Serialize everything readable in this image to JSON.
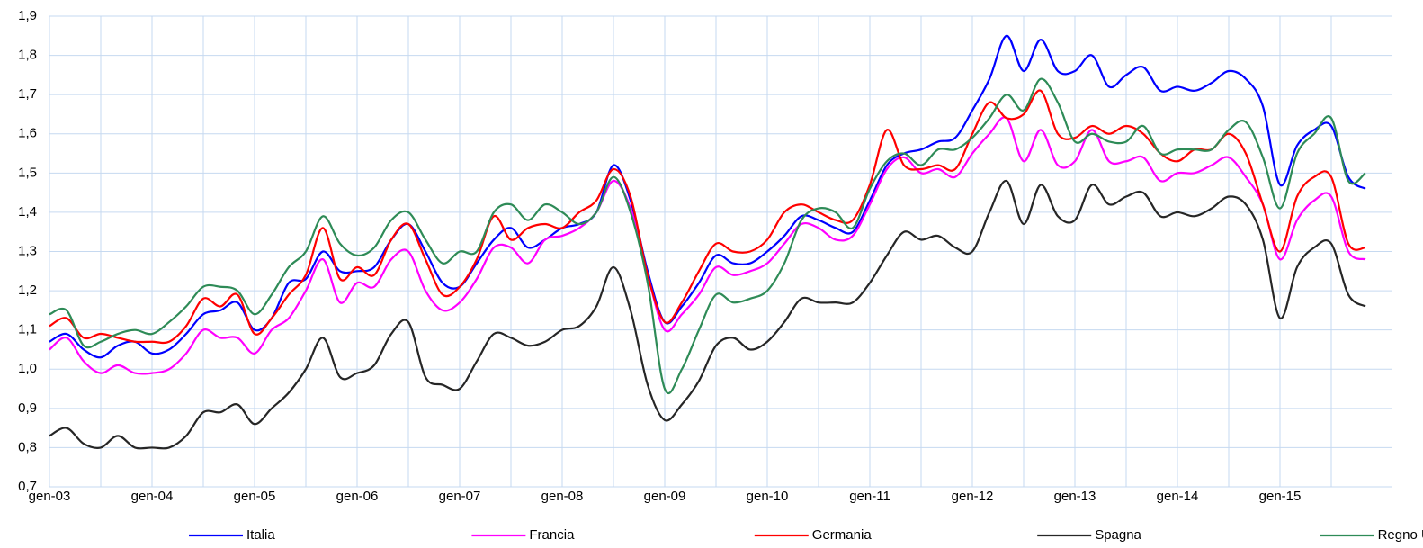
{
  "chart_data": {
    "type": "line",
    "categories": [
      "gen-03",
      null,
      null,
      null,
      null,
      null,
      "gen-04",
      null,
      null,
      null,
      null,
      null,
      "gen-05",
      null,
      null,
      null,
      null,
      null,
      "gen-06",
      null,
      null,
      null,
      null,
      null,
      "gen-07",
      null,
      null,
      null,
      null,
      null,
      "gen-08",
      null,
      null,
      null,
      null,
      null,
      "gen-09",
      null,
      null,
      null,
      null,
      null,
      "gen-10",
      null,
      null,
      null,
      null,
      null,
      "gen-11",
      null,
      null,
      null,
      null,
      null,
      "gen-12",
      null,
      null,
      null,
      null,
      null,
      "gen-13",
      null,
      null,
      null,
      null,
      null,
      "gen-14",
      null,
      null,
      null,
      null,
      null,
      "gen-15",
      null,
      null,
      null,
      null,
      null
    ],
    "series": [
      {
        "name": "Italia",
        "color": "#0000ff",
        "values": [
          1.07,
          1.09,
          1.05,
          1.03,
          1.06,
          1.07,
          1.04,
          1.05,
          1.09,
          1.14,
          1.15,
          1.17,
          1.1,
          1.13,
          1.22,
          1.23,
          1.3,
          1.25,
          1.25,
          1.26,
          1.33,
          1.37,
          1.3,
          1.22,
          1.21,
          1.27,
          1.33,
          1.36,
          1.31,
          1.33,
          1.36,
          1.37,
          1.4,
          1.52,
          1.43,
          1.25,
          1.12,
          1.16,
          1.22,
          1.29,
          1.27,
          1.27,
          1.3,
          1.34,
          1.39,
          1.38,
          1.36,
          1.35,
          1.43,
          1.52,
          1.55,
          1.56,
          1.58,
          1.59,
          1.66,
          1.74,
          1.85,
          1.76,
          1.84,
          1.76,
          1.76,
          1.8,
          1.72,
          1.75,
          1.77,
          1.71,
          1.72,
          1.71,
          1.73,
          1.76,
          1.74,
          1.67,
          1.47,
          1.57,
          1.61,
          1.62,
          1.49,
          1.46
        ]
      },
      {
        "name": "Francia",
        "color": "#ff00ff",
        "values": [
          1.05,
          1.08,
          1.02,
          0.99,
          1.01,
          0.99,
          0.99,
          1.0,
          1.04,
          1.1,
          1.08,
          1.08,
          1.04,
          1.1,
          1.13,
          1.2,
          1.28,
          1.17,
          1.22,
          1.21,
          1.28,
          1.3,
          1.2,
          1.15,
          1.17,
          1.23,
          1.31,
          1.31,
          1.27,
          1.33,
          1.34,
          1.36,
          1.4,
          1.48,
          1.41,
          1.24,
          1.1,
          1.14,
          1.19,
          1.26,
          1.24,
          1.25,
          1.27,
          1.32,
          1.37,
          1.36,
          1.33,
          1.34,
          1.42,
          1.51,
          1.54,
          1.5,
          1.51,
          1.49,
          1.55,
          1.6,
          1.64,
          1.53,
          1.61,
          1.52,
          1.53,
          1.61,
          1.53,
          1.53,
          1.54,
          1.48,
          1.5,
          1.5,
          1.52,
          1.54,
          1.49,
          1.42,
          1.28,
          1.38,
          1.43,
          1.44,
          1.3,
          1.28
        ]
      },
      {
        "name": "Germania",
        "color": "#ff0000",
        "values": [
          1.11,
          1.13,
          1.08,
          1.09,
          1.08,
          1.07,
          1.07,
          1.07,
          1.11,
          1.18,
          1.16,
          1.19,
          1.09,
          1.13,
          1.19,
          1.24,
          1.36,
          1.23,
          1.26,
          1.24,
          1.33,
          1.37,
          1.28,
          1.19,
          1.21,
          1.28,
          1.39,
          1.33,
          1.36,
          1.37,
          1.36,
          1.4,
          1.43,
          1.51,
          1.44,
          1.24,
          1.12,
          1.17,
          1.25,
          1.32,
          1.3,
          1.3,
          1.33,
          1.4,
          1.42,
          1.4,
          1.38,
          1.38,
          1.47,
          1.61,
          1.52,
          1.51,
          1.52,
          1.51,
          1.6,
          1.68,
          1.64,
          1.65,
          1.71,
          1.6,
          1.59,
          1.62,
          1.6,
          1.62,
          1.6,
          1.55,
          1.53,
          1.56,
          1.56,
          1.6,
          1.55,
          1.42,
          1.3,
          1.44,
          1.49,
          1.49,
          1.32,
          1.31
        ]
      },
      {
        "name": "Spagna",
        "color": "#262626",
        "values": [
          0.83,
          0.85,
          0.81,
          0.8,
          0.83,
          0.8,
          0.8,
          0.8,
          0.83,
          0.89,
          0.89,
          0.91,
          0.86,
          0.9,
          0.94,
          1.0,
          1.08,
          0.98,
          0.99,
          1.01,
          1.09,
          1.12,
          0.98,
          0.96,
          0.95,
          1.02,
          1.09,
          1.08,
          1.06,
          1.07,
          1.1,
          1.11,
          1.16,
          1.26,
          1.15,
          0.96,
          0.87,
          0.91,
          0.97,
          1.06,
          1.08,
          1.05,
          1.07,
          1.12,
          1.18,
          1.17,
          1.17,
          1.17,
          1.22,
          1.29,
          1.35,
          1.33,
          1.34,
          1.31,
          1.3,
          1.4,
          1.48,
          1.37,
          1.47,
          1.39,
          1.38,
          1.47,
          1.42,
          1.44,
          1.45,
          1.39,
          1.4,
          1.39,
          1.41,
          1.44,
          1.42,
          1.33,
          1.13,
          1.26,
          1.31,
          1.32,
          1.19,
          1.16
        ]
      },
      {
        "name": "Regno Unito",
        "color": "#2e8b57",
        "values": [
          1.14,
          1.15,
          1.06,
          1.07,
          1.09,
          1.1,
          1.09,
          1.12,
          1.16,
          1.21,
          1.21,
          1.2,
          1.14,
          1.19,
          1.26,
          1.3,
          1.39,
          1.32,
          1.29,
          1.31,
          1.38,
          1.4,
          1.33,
          1.27,
          1.3,
          1.3,
          1.4,
          1.42,
          1.38,
          1.42,
          1.4,
          1.37,
          1.4,
          1.49,
          1.4,
          1.22,
          0.95,
          1.0,
          1.1,
          1.19,
          1.17,
          1.18,
          1.2,
          1.27,
          1.38,
          1.41,
          1.4,
          1.36,
          1.46,
          1.53,
          1.55,
          1.52,
          1.56,
          1.56,
          1.59,
          1.64,
          1.7,
          1.66,
          1.74,
          1.68,
          1.58,
          1.6,
          1.58,
          1.58,
          1.62,
          1.55,
          1.56,
          1.56,
          1.56,
          1.61,
          1.63,
          1.54,
          1.41,
          1.55,
          1.6,
          1.64,
          1.48,
          1.5
        ]
      }
    ],
    "ylim": [
      0.7,
      1.9
    ],
    "yticks": [
      {
        "value": 0.7,
        "label": "0,7"
      },
      {
        "value": 0.8,
        "label": "0,8"
      },
      {
        "value": 0.9,
        "label": "0,9"
      },
      {
        "value": 1.0,
        "label": "1,0"
      },
      {
        "value": 1.1,
        "label": "1,1"
      },
      {
        "value": 1.2,
        "label": "1,2"
      },
      {
        "value": 1.3,
        "label": "1,3"
      },
      {
        "value": 1.4,
        "label": "1,4"
      },
      {
        "value": 1.5,
        "label": "1,5"
      },
      {
        "value": 1.6,
        "label": "1,6"
      },
      {
        "value": 1.7,
        "label": "1,7"
      },
      {
        "value": 1.8,
        "label": "1,8"
      },
      {
        "value": 1.9,
        "label": "1,9"
      }
    ],
    "grid": true,
    "legend": "bottom"
  }
}
